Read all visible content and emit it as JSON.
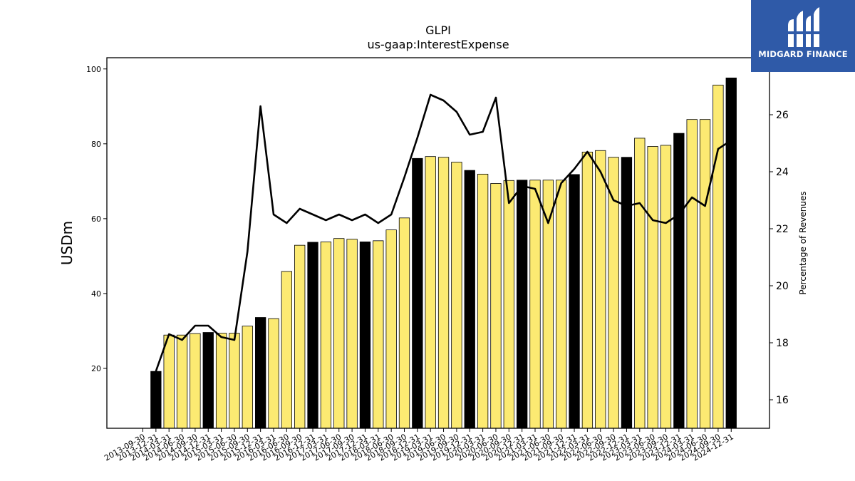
{
  "logo": {
    "text": "MIDGARD FINANCE"
  },
  "chart_data": {
    "type": "bar",
    "title": "GLPI",
    "subtitle": "us-gaap:InterestExpense",
    "ylabel": "USDm",
    "y2label": "Percentage of Revenues",
    "ylim": [
      4,
      103
    ],
    "y2lim": [
      15,
      28
    ],
    "yticks": [
      20,
      40,
      60,
      80,
      100
    ],
    "y2ticks": [
      16,
      18,
      20,
      22,
      24,
      26
    ],
    "grid": false,
    "colors": {
      "q4_bar": "#000000",
      "other_bar": "#fcea72",
      "line": "#000000",
      "edge": "#000000"
    },
    "categories": [
      "2013-09-30",
      "2013-12-31",
      "2014-03-31",
      "2014-06-30",
      "2014-09-30",
      "2014-12-31",
      "2015-03-31",
      "2015-06-30",
      "2015-09-30",
      "2015-12-31",
      "2016-03-31",
      "2016-06-30",
      "2016-09-30",
      "2016-12-31",
      "2017-03-31",
      "2017-06-30",
      "2017-09-30",
      "2017-12-31",
      "2018-03-31",
      "2018-06-30",
      "2018-09-30",
      "2018-12-31",
      "2019-03-31",
      "2019-06-30",
      "2019-09-30",
      "2019-12-31",
      "2020-03-31",
      "2020-06-30",
      "2020-09-30",
      "2020-12-31",
      "2021-03-31",
      "2021-06-30",
      "2021-09-30",
      "2021-12-31",
      "2022-03-31",
      "2022-06-30",
      "2022-09-30",
      "2022-12-31",
      "2023-03-31",
      "2023-06-30",
      "2023-09-30",
      "2023-12-31",
      "2024-03-31",
      "2024-06-30",
      "2024-09-30",
      "2024-12-31"
    ],
    "series": [
      {
        "type": "bar",
        "values": [
          null,
          19.2,
          28.9,
          28.9,
          29.3,
          29.6,
          29.4,
          29.4,
          31.3,
          33.6,
          33.3,
          45.9,
          52.9,
          53.7,
          53.8,
          54.7,
          54.5,
          53.8,
          54.1,
          57.0,
          60.2,
          76.1,
          76.6,
          76.4,
          75.1,
          72.9,
          71.9,
          69.4,
          70.2,
          70.3,
          70.3,
          70.3,
          70.3,
          71.8,
          77.8,
          78.2,
          76.4,
          76.4,
          81.5,
          79.3,
          79.6,
          82.8,
          86.5,
          86.5,
          95.7,
          97.6
        ]
      },
      {
        "type": "line",
        "axis": "right",
        "values": [
          null,
          17.0,
          18.3,
          18.1,
          18.6,
          18.6,
          18.2,
          18.1,
          21.2,
          26.3,
          22.5,
          22.2,
          22.7,
          22.5,
          22.3,
          22.5,
          22.3,
          22.5,
          22.2,
          22.5,
          23.8,
          25.2,
          26.7,
          26.5,
          26.1,
          25.3,
          25.4,
          26.6,
          22.9,
          23.5,
          23.4,
          22.2,
          23.6,
          24.1,
          24.7,
          24.0,
          23.0,
          22.8,
          22.9,
          22.3,
          22.2,
          22.5,
          23.1,
          22.8,
          24.8,
          25.1
        ]
      }
    ]
  }
}
